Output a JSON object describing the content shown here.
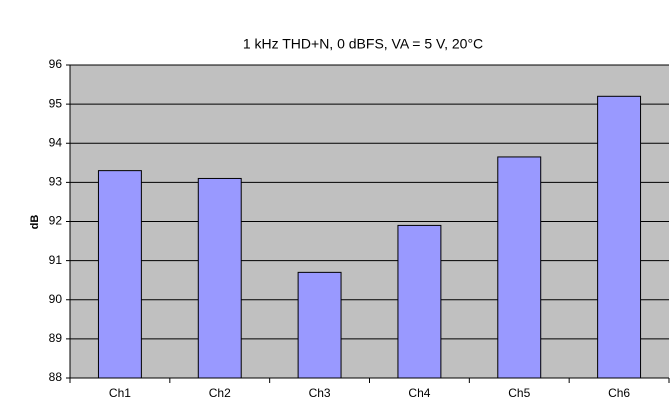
{
  "chart_data": {
    "type": "bar",
    "title": "1 kHz THD+N, 0 dBFS, VA = 5 V, 20°C",
    "y_label": "dB",
    "categories": [
      "Ch1",
      "Ch2",
      "Ch3",
      "Ch4",
      "Ch5",
      "Ch6"
    ],
    "values": [
      93.3,
      93.1,
      90.7,
      91.9,
      93.65,
      95.2
    ],
    "color": "#9999ff",
    "ylim": [
      88,
      96
    ],
    "yticks": [
      88,
      89,
      90,
      91,
      92,
      93,
      94,
      95,
      96
    ],
    "grid": true
  }
}
